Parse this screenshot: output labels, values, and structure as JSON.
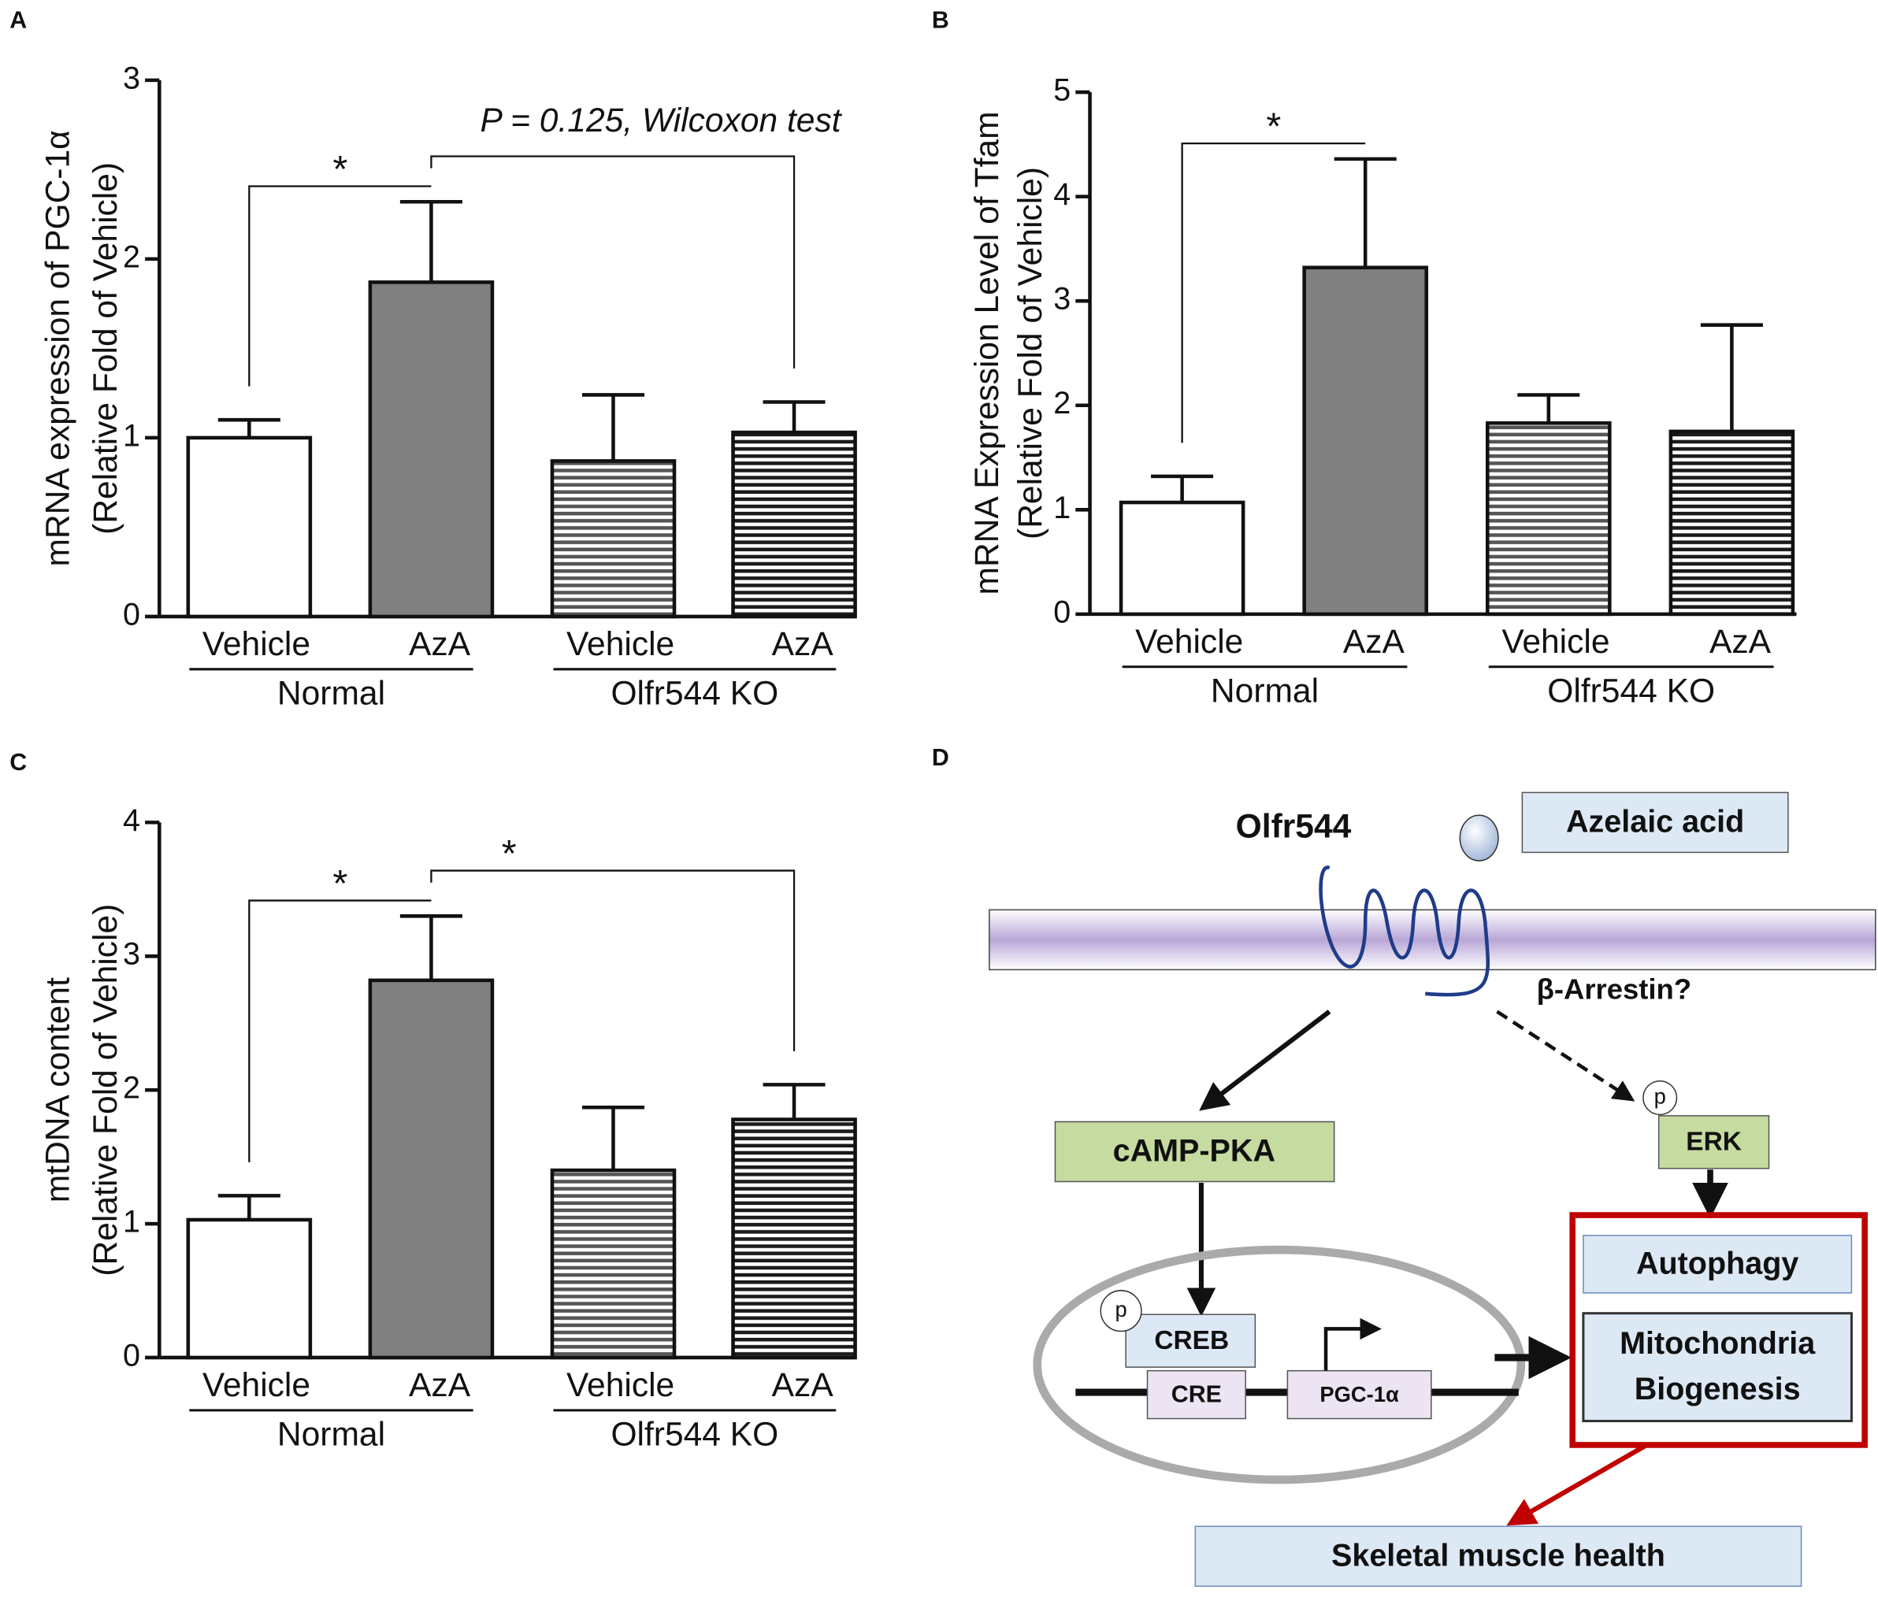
{
  "chart_data": [
    {
      "type": "bar",
      "panel": "A",
      "ylabel": [
        "mRNA expression of PGC-1α",
        "(Relative Fold of Vehicle)"
      ],
      "categories": [
        "Vehicle",
        "AzA",
        "Vehicle",
        "AzA"
      ],
      "group_labels": [
        "Normal",
        "Olfr544 KO"
      ],
      "values": [
        1.0,
        1.87,
        0.87,
        1.03
      ],
      "errors": [
        0.1,
        0.45,
        0.37,
        0.17
      ],
      "colors": [
        "#ffffff",
        "#808080",
        "#555555",
        "#1a1a1a"
      ],
      "patterns": [
        "solid",
        "solid",
        "stripes",
        "stripes"
      ],
      "annotations": [
        "*",
        "P = 0.125, Wilcoxon test"
      ],
      "ylim": [
        0,
        3
      ],
      "yticks": [
        0,
        1,
        2,
        3
      ]
    },
    {
      "type": "bar",
      "panel": "B",
      "ylabel": [
        "mRNA Expression Level of Tfam",
        "(Relative Fold of Vehicle)"
      ],
      "categories": [
        "Vehicle",
        "AzA",
        "Vehicle",
        "AzA"
      ],
      "group_labels": [
        "Normal",
        "Olfr544 KO"
      ],
      "values": [
        1.07,
        3.32,
        1.83,
        1.75
      ],
      "errors": [
        0.25,
        1.04,
        0.27,
        1.02
      ],
      "colors": [
        "#ffffff",
        "#808080",
        "#555555",
        "#1a1a1a"
      ],
      "patterns": [
        "solid",
        "solid",
        "stripes",
        "stripes"
      ],
      "annotations": [
        "*"
      ],
      "ylim": [
        0,
        5
      ],
      "yticks": [
        0,
        1,
        2,
        3,
        4,
        5
      ]
    },
    {
      "type": "bar",
      "panel": "C",
      "ylabel": [
        "mtDNA content",
        "(Relative Fold of Vehicle)"
      ],
      "categories": [
        "Vehicle",
        "AzA",
        "Vehicle",
        "AzA"
      ],
      "group_labels": [
        "Normal",
        "Olfr544 KO"
      ],
      "values": [
        1.03,
        2.82,
        1.4,
        1.78
      ],
      "errors": [
        0.18,
        0.48,
        0.47,
        0.26
      ],
      "colors": [
        "#ffffff",
        "#808080",
        "#555555",
        "#1a1a1a"
      ],
      "patterns": [
        "solid",
        "solid",
        "stripes",
        "stripes"
      ],
      "annotations": [
        "*",
        "*"
      ],
      "ylim": [
        0,
        4
      ],
      "yticks": [
        0,
        1,
        2,
        3,
        4
      ]
    }
  ],
  "diagram": {
    "panel": "D",
    "receptor": "Olfr544",
    "ligand": "Azelaic acid",
    "arrestin": "β-Arrestin?",
    "camp": "cAMP-PKA",
    "erk": "ERK",
    "phospho": "p",
    "creb": "CREB",
    "cre": "CRE",
    "pgc": "PGC-1α",
    "autophagy": "Autophagy",
    "mito": [
      "Mitochondria",
      "Biogenesis"
    ],
    "outcome": "Skeletal muscle health"
  }
}
